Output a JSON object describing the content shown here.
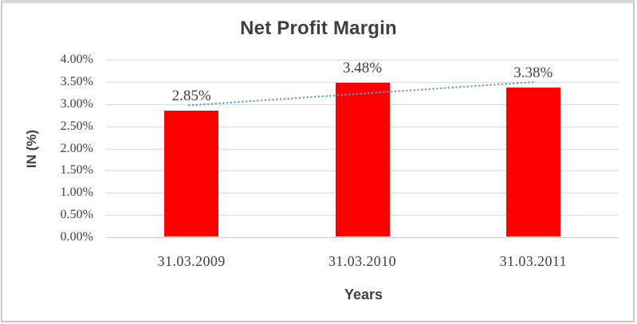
{
  "chart_data": {
    "type": "bar",
    "title": "Net Profit Margin",
    "categories": [
      "31.03.2009",
      "31.03.2010",
      "31.03.2011"
    ],
    "values": [
      2.85,
      3.48,
      3.38
    ],
    "data_labels": [
      "2.85%",
      "3.48%",
      "3.38%"
    ],
    "xlabel": "Years",
    "ylabel": "IN (%)",
    "y_ticks": [
      "0.00%",
      "0.50%",
      "1.00%",
      "1.50%",
      "2.00%",
      "2.50%",
      "3.00%",
      "3.50%",
      "4.00%"
    ],
    "ylim": [
      0,
      4
    ],
    "y_tick_step": 0.5,
    "grid": true,
    "legend": "none",
    "bar_color": "#ff0000",
    "trendline": {
      "type": "linear",
      "style": "dotted",
      "color": "#5b9bd5"
    },
    "colors": {
      "grid": "#d9d9d9",
      "text": "#404040",
      "title_text": "#3f3f3f",
      "frame_border": "#c9c9c9"
    }
  }
}
